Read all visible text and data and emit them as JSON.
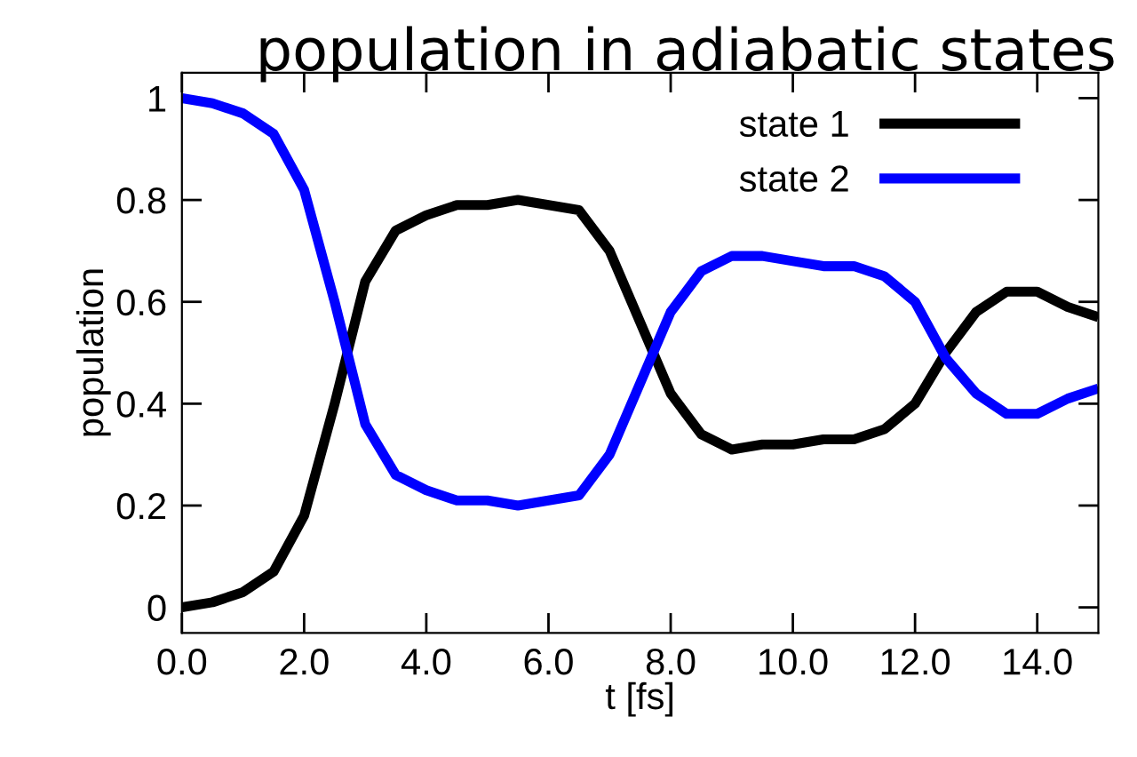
{
  "chart_data": {
    "type": "line",
    "title": "population in adiabatic states",
    "xlabel": "t [fs]",
    "ylabel": "population",
    "x": [
      0,
      0.5,
      1,
      1.5,
      2,
      2.5,
      3,
      3.5,
      4,
      4.5,
      5,
      5.5,
      6,
      6.5,
      7,
      7.5,
      8,
      8.5,
      9,
      9.5,
      10,
      10.5,
      11,
      11.5,
      12,
      12.5,
      13,
      13.5,
      14,
      14.5,
      15
    ],
    "series": [
      {
        "name": "state 1",
        "color": "#000000",
        "values": [
          0.0,
          0.01,
          0.03,
          0.07,
          0.18,
          0.4,
          0.64,
          0.74,
          0.77,
          0.79,
          0.79,
          0.8,
          0.79,
          0.78,
          0.7,
          0.56,
          0.42,
          0.34,
          0.31,
          0.32,
          0.32,
          0.33,
          0.33,
          0.35,
          0.4,
          0.5,
          0.58,
          0.62,
          0.62,
          0.59,
          0.57
        ]
      },
      {
        "name": "state 2",
        "color": "#0000ff",
        "values": [
          1.0,
          0.99,
          0.97,
          0.93,
          0.82,
          0.6,
          0.36,
          0.26,
          0.23,
          0.21,
          0.21,
          0.2,
          0.21,
          0.22,
          0.3,
          0.44,
          0.58,
          0.66,
          0.69,
          0.69,
          0.68,
          0.67,
          0.67,
          0.65,
          0.6,
          0.49,
          0.42,
          0.38,
          0.38,
          0.41,
          0.43
        ]
      }
    ],
    "xlim": [
      0,
      15
    ],
    "ylim": [
      -0.05,
      1.05
    ],
    "xticks": [
      {
        "value": 0,
        "label": "0.0"
      },
      {
        "value": 2,
        "label": "2.0"
      },
      {
        "value": 4,
        "label": "4.0"
      },
      {
        "value": 6,
        "label": "6.0"
      },
      {
        "value": 8,
        "label": "8.0"
      },
      {
        "value": 10,
        "label": "10.0"
      },
      {
        "value": 12,
        "label": "12.0"
      },
      {
        "value": 14,
        "label": "14.0"
      }
    ],
    "yticks": [
      0,
      0.2,
      0.4,
      0.6,
      0.8,
      1
    ],
    "legend": "top right",
    "line_style": "solid"
  }
}
